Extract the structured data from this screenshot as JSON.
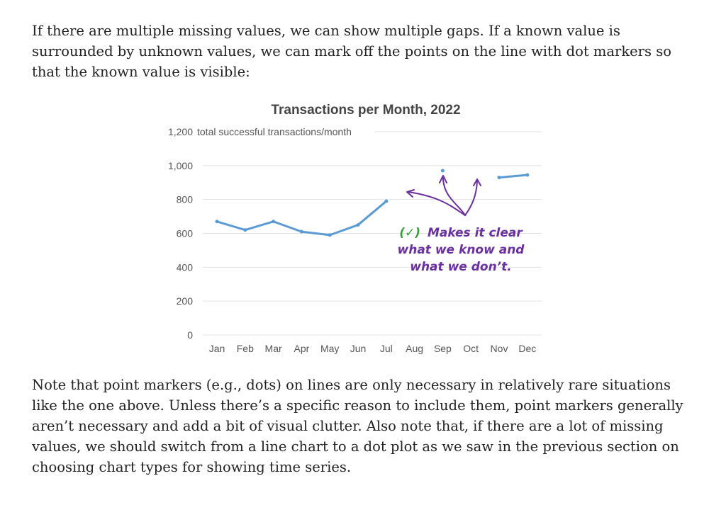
{
  "paragraphs": {
    "intro": "If there are multiple missing values, we can show multiple gaps. If a known value is surrounded by unknown values, we can mark off the points on the line with dot markers so that the known value is visible:",
    "outro": "Note that point markers (e.g., dots) on lines are only necessary in relatively rare situations like the one above. Unless there’s a specific reason to include them, point markers generally aren’t necessary and add a bit of visual clutter. Also note that, if there are a lot of missing values, we should switch from a line chart to a dot plot as we saw in the previous section on choosing chart types for showing time series."
  },
  "chart_data": {
    "type": "line",
    "title": "Transactions per Month, 2022",
    "ylabel": "total successful transactions/month",
    "ylim": [
      0,
      1200
    ],
    "y_ticks": [
      "0",
      "200",
      "400",
      "600",
      "800",
      "1,000",
      "1,200"
    ],
    "categories": [
      "Jan",
      "Feb",
      "Mar",
      "Apr",
      "May",
      "Jun",
      "Jul",
      "Aug",
      "Sep",
      "Oct",
      "Nov",
      "Dec"
    ],
    "series": [
      {
        "values": [
          670,
          620,
          670,
          610,
          590,
          650,
          790,
          null,
          970,
          null,
          930,
          945
        ]
      }
    ],
    "markers": true,
    "grid": true,
    "line_color": "#5b9bd5",
    "annotation": {
      "check": "(✓)",
      "line1": "Makes it clear",
      "line2": "what we know and",
      "line3": "what we don’t.",
      "check_color": "#3a9d3a",
      "text_color": "#6b2fa0"
    }
  }
}
